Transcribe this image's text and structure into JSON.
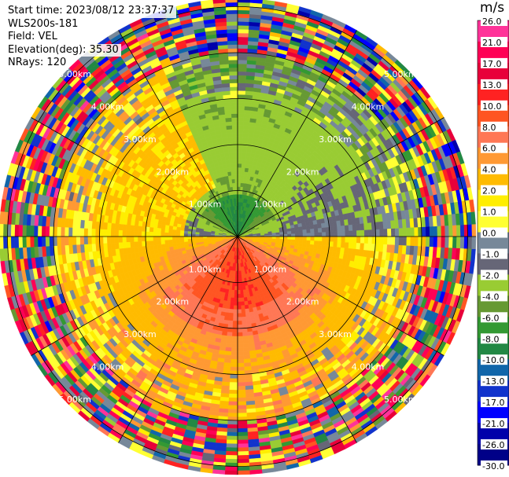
{
  "info": {
    "start_time": "Start time: 2023/08/12 23:37:37",
    "instrument": "WLS200s-181",
    "field": "Field: VEL",
    "elevation": "Elevation(deg): 35.30",
    "nrays": "NRays: 120"
  },
  "colorbar": {
    "title": "m/s",
    "ticks": [
      "26.0",
      "21.0",
      "17.0",
      "13.0",
      "10.0",
      "8.0",
      "6.0",
      "4.0",
      "2.0",
      "1.0",
      "0.0",
      "-1.0",
      "-2.0",
      "-4.0",
      "-6.0",
      "-8.0",
      "-10.0",
      "-13.0",
      "-17.0",
      "-21.0",
      "-26.0",
      "-30.0"
    ],
    "colors": [
      "#ff3399",
      "#ff0055",
      "#e8003a",
      "#ff2222",
      "#ff5522",
      "#ff7755",
      "#ff9933",
      "#ffbb00",
      "#ffee00",
      "#ffff33",
      "#778899",
      "#666677",
      "#99cc33",
      "#669933",
      "#339933",
      "#228844",
      "#1166aa",
      "#1133cc",
      "#0000ff",
      "#0000aa",
      "#000088",
      "#00004d"
    ]
  },
  "chart_data": {
    "type": "polar_ppi",
    "field": "VEL",
    "units": "m/s",
    "range_rings_km": [
      1,
      2,
      3,
      4,
      5
    ],
    "ring_labels": [
      "1.00km",
      "2.00km",
      "3.00km",
      "4.00km",
      "5.00km"
    ],
    "colorbar_ticks": [
      26,
      21,
      17,
      13,
      10,
      8,
      6,
      4,
      2,
      1,
      0,
      -1,
      -2,
      -4,
      -6,
      -8,
      -10,
      -13,
      -17,
      -21,
      -26,
      -30
    ],
    "pattern": {
      "north_sector_velocity_range": [
        -10,
        -1
      ],
      "south_sector_velocity_range": [
        2,
        13
      ],
      "outer_ranges": "noisy"
    }
  }
}
